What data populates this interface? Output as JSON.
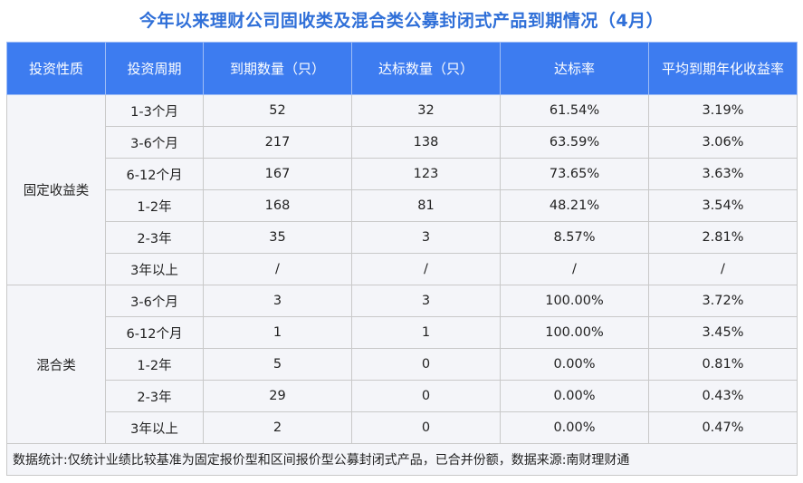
{
  "title": "今年以来理财公司固收类及混合类公募封闭式产品到期情况（4月）",
  "headers": [
    "投资性质",
    "投资周期",
    "到期数量（只）",
    "达标数量（只）",
    "达标率",
    "平均到期年化收益率"
  ],
  "groups": [
    {
      "name": "固定收益类",
      "rows": [
        [
          "1-3个月",
          "52",
          "32",
          "61.54%",
          "3.19%"
        ],
        [
          "3-6个月",
          "217",
          "138",
          "63.59%",
          "3.06%"
        ],
        [
          "6-12个月",
          "167",
          "123",
          "73.65%",
          "3.63%"
        ],
        [
          "1-2年",
          "168",
          "81",
          "48.21%",
          "3.54%"
        ],
        [
          "2-3年",
          "35",
          "3",
          "8.57%",
          "2.81%"
        ],
        [
          "3年以上",
          "/",
          "/",
          "/",
          "/"
        ]
      ]
    },
    {
      "name": "混合类",
      "rows": [
        [
          "3-6个月",
          "3",
          "3",
          "100.00%",
          "3.72%"
        ],
        [
          "6-12个月",
          "1",
          "1",
          "100.00%",
          "3.45%"
        ],
        [
          "1-2年",
          "5",
          "0",
          "0.00%",
          "0.81%"
        ],
        [
          "2-3年",
          "29",
          "0",
          "0.00%",
          "0.43%"
        ],
        [
          "3年以上",
          "2",
          "0",
          "0.00%",
          "0.47%"
        ]
      ]
    }
  ],
  "note": "数据统计:仅统计业绩比较基准为固定报价型和区间报价型公募封闭式产品，已合并份额，数据来源:南财理财通"
}
